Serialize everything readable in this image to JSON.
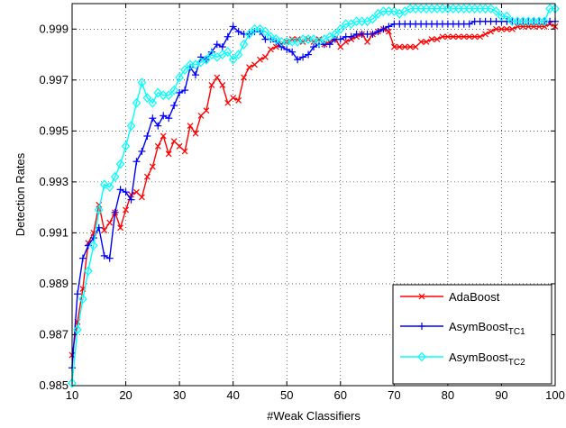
{
  "chart_data": {
    "type": "line",
    "title": "",
    "xlabel": "#Weak Classifiers",
    "ylabel": "Detection Rates",
    "xlim": [
      10,
      100
    ],
    "ylim": [
      0.985,
      1.0
    ],
    "xticks": [
      10,
      20,
      30,
      40,
      50,
      60,
      70,
      80,
      90,
      100
    ],
    "yticks": [
      0.985,
      0.987,
      0.989,
      0.991,
      0.993,
      0.995,
      0.997,
      0.999
    ],
    "xtick_labels": [
      "10",
      "20",
      "30",
      "40",
      "50",
      "60",
      "70",
      "80",
      "90",
      "100"
    ],
    "ytick_labels": [
      "0.985",
      "0.987",
      "0.989",
      "0.991",
      "0.993",
      "0.995",
      "0.997",
      "0.999"
    ],
    "grid": true,
    "legend_position": "bottom-right",
    "x": [
      10,
      11,
      12,
      13,
      14,
      15,
      16,
      17,
      18,
      19,
      20,
      21,
      22,
      23,
      24,
      25,
      26,
      27,
      28,
      29,
      30,
      31,
      32,
      33,
      34,
      35,
      36,
      37,
      38,
      39,
      40,
      41,
      42,
      43,
      44,
      45,
      46,
      47,
      48,
      49,
      50,
      51,
      52,
      53,
      54,
      55,
      56,
      57,
      58,
      59,
      60,
      61,
      62,
      63,
      64,
      65,
      66,
      67,
      68,
      69,
      70,
      71,
      72,
      73,
      74,
      75,
      76,
      77,
      78,
      79,
      80,
      81,
      82,
      83,
      84,
      85,
      86,
      87,
      88,
      89,
      90,
      91,
      92,
      93,
      94,
      95,
      96,
      97,
      98,
      99,
      100
    ],
    "series": [
      {
        "name": "AdaBoost",
        "base": "AdaBoost",
        "sub": "",
        "color": "#ff0000",
        "marker": "x",
        "values": [
          0.9862,
          0.9875,
          0.9888,
          0.9906,
          0.991,
          0.9921,
          0.9911,
          0.9914,
          0.9918,
          0.9912,
          0.9919,
          0.9925,
          0.9926,
          0.9924,
          0.9932,
          0.9936,
          0.9944,
          0.9948,
          0.9941,
          0.9946,
          0.9944,
          0.9942,
          0.9952,
          0.9949,
          0.9956,
          0.9958,
          0.9968,
          0.9971,
          0.9968,
          0.9961,
          0.9963,
          0.9962,
          0.9971,
          0.9975,
          0.9976,
          0.9978,
          0.9979,
          0.9982,
          0.9983,
          0.9984,
          0.9985,
          0.9986,
          0.9986,
          0.9985,
          0.9986,
          0.9985,
          0.9986,
          0.9984,
          0.9985,
          0.9986,
          0.9983,
          0.9985,
          0.9986,
          0.9987,
          0.9988,
          0.9985,
          0.9988,
          0.9989,
          0.999,
          0.9989,
          0.9983,
          0.9983,
          0.9983,
          0.9983,
          0.9983,
          0.9985,
          0.9985,
          0.9986,
          0.9986,
          0.9987,
          0.9987,
          0.9987,
          0.9987,
          0.9987,
          0.9987,
          0.9987,
          0.9987,
          0.9988,
          0.9989,
          0.999,
          0.999,
          0.999,
          0.999,
          0.9991,
          0.9991,
          0.9991,
          0.9991,
          0.9991,
          0.9991,
          0.9992,
          0.9991
        ]
      },
      {
        "name": "AsymBoostTC1",
        "base": "AsymBoost",
        "sub": "TC1",
        "color": "#0000ff",
        "marker": "+",
        "values": [
          0.9857,
          0.9886,
          0.99,
          0.9905,
          0.9908,
          0.9912,
          0.9901,
          0.99,
          0.9918,
          0.9927,
          0.9926,
          0.9923,
          0.9938,
          0.9942,
          0.9948,
          0.9955,
          0.9952,
          0.9956,
          0.9955,
          0.996,
          0.9965,
          0.9966,
          0.9975,
          0.9972,
          0.9979,
          0.9978,
          0.9981,
          0.9984,
          0.9983,
          0.9987,
          0.9991,
          0.9989,
          0.9988,
          0.9988,
          0.9989,
          0.9989,
          0.9986,
          0.9986,
          0.9985,
          0.9983,
          0.9982,
          0.9981,
          0.9978,
          0.9979,
          0.998,
          0.9983,
          0.9984,
          0.9984,
          0.9984,
          0.9986,
          0.9986,
          0.9987,
          0.9987,
          0.9988,
          0.9988,
          0.9988,
          0.9988,
          0.9989,
          0.999,
          0.9991,
          0.9992,
          0.9992,
          0.9992,
          0.9992,
          0.9992,
          0.9992,
          0.9992,
          0.9992,
          0.9992,
          0.9992,
          0.9992,
          0.9992,
          0.9992,
          0.9992,
          0.9992,
          0.9993,
          0.9993,
          0.9993,
          0.9993,
          0.9993,
          0.9993,
          0.9993,
          0.9993,
          0.9993,
          0.9993,
          0.9993,
          0.9993,
          0.9993,
          0.9993,
          0.9993,
          0.9993
        ]
      },
      {
        "name": "AsymBoostTC2",
        "base": "AsymBoost",
        "sub": "TC2",
        "color": "#00ffff",
        "marker": "diamond",
        "values": [
          0.9851,
          0.9872,
          0.9884,
          0.9895,
          0.9905,
          0.9919,
          0.9929,
          0.9928,
          0.9932,
          0.9937,
          0.9944,
          0.9952,
          0.9961,
          0.9969,
          0.9963,
          0.9961,
          0.9965,
          0.9964,
          0.9964,
          0.9966,
          0.9971,
          0.9974,
          0.9976,
          0.9976,
          0.9977,
          0.9978,
          0.998,
          0.9979,
          0.998,
          0.9981,
          0.9978,
          0.998,
          0.9984,
          0.9988,
          0.999,
          0.999,
          0.9989,
          0.9987,
          0.9986,
          0.9985,
          0.9985,
          0.9985,
          0.9985,
          0.9986,
          0.9986,
          0.9986,
          0.9985,
          0.9986,
          0.9987,
          0.9988,
          0.999,
          0.9992,
          0.9992,
          0.9993,
          0.9993,
          0.9993,
          0.9994,
          0.9996,
          0.9997,
          0.9997,
          0.9997,
          0.9996,
          0.9997,
          0.9998,
          0.9998,
          0.9998,
          0.9998,
          0.9998,
          0.9998,
          0.9998,
          0.9998,
          0.9998,
          0.9998,
          0.9998,
          0.9998,
          0.9998,
          0.9998,
          0.9998,
          0.9998,
          0.9997,
          0.9995,
          0.9995,
          0.9993,
          0.9993,
          0.9993,
          0.9993,
          0.9993,
          0.9993,
          0.9993,
          0.9998,
          0.9998
        ]
      }
    ]
  }
}
